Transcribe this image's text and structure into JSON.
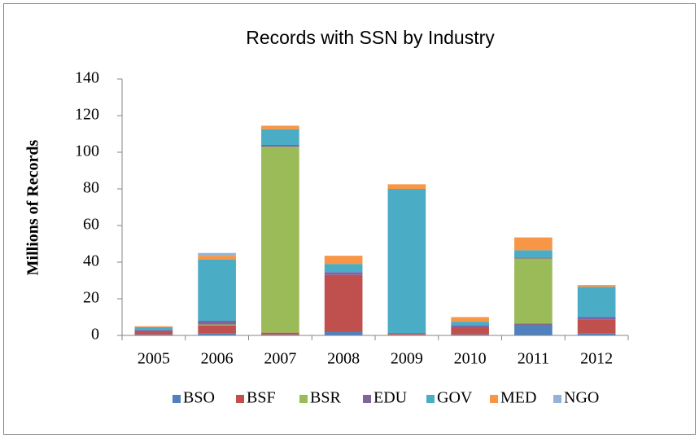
{
  "chart_data": {
    "type": "stacked_bar",
    "title": "Records with SSN by Industry",
    "y_label": "Millions of Records",
    "categories": [
      "2005",
      "2006",
      "2007",
      "2008",
      "2009",
      "2010",
      "2011",
      "2012"
    ],
    "series": [
      {
        "name": "BSO",
        "color": "#4f81bd",
        "values": [
          0.5,
          1,
          0.5,
          2,
          0.3,
          0.5,
          6,
          1
        ]
      },
      {
        "name": "BSF",
        "color": "#c0504d",
        "values": [
          1.5,
          4.5,
          1,
          31,
          0.5,
          3.5,
          0.5,
          7.5
        ]
      },
      {
        "name": "BSR",
        "color": "#9bbb59",
        "values": [
          0,
          0.5,
          101.5,
          0,
          0,
          0,
          35.5,
          0
        ]
      },
      {
        "name": "EDU",
        "color": "#8064a2",
        "values": [
          1,
          2,
          1,
          1.5,
          0.5,
          1.5,
          0.5,
          1.5
        ]
      },
      {
        "name": "GOV",
        "color": "#4bacc6",
        "values": [
          1.5,
          33.5,
          8.5,
          4.5,
          78.7,
          2,
          4,
          16.5
        ]
      },
      {
        "name": "MED",
        "color": "#f79646",
        "values": [
          0.5,
          2,
          2,
          4.5,
          2.5,
          2.5,
          7,
          1
        ]
      },
      {
        "name": "NGO",
        "color": "#95b3d7",
        "values": [
          0,
          1.5,
          0,
          0,
          0,
          0,
          0,
          0
        ]
      }
    ],
    "ylim": [
      0,
      140
    ],
    "yticks": [
      0,
      20,
      40,
      60,
      80,
      100,
      120,
      140
    ],
    "grid": false,
    "legend": "bottom"
  }
}
